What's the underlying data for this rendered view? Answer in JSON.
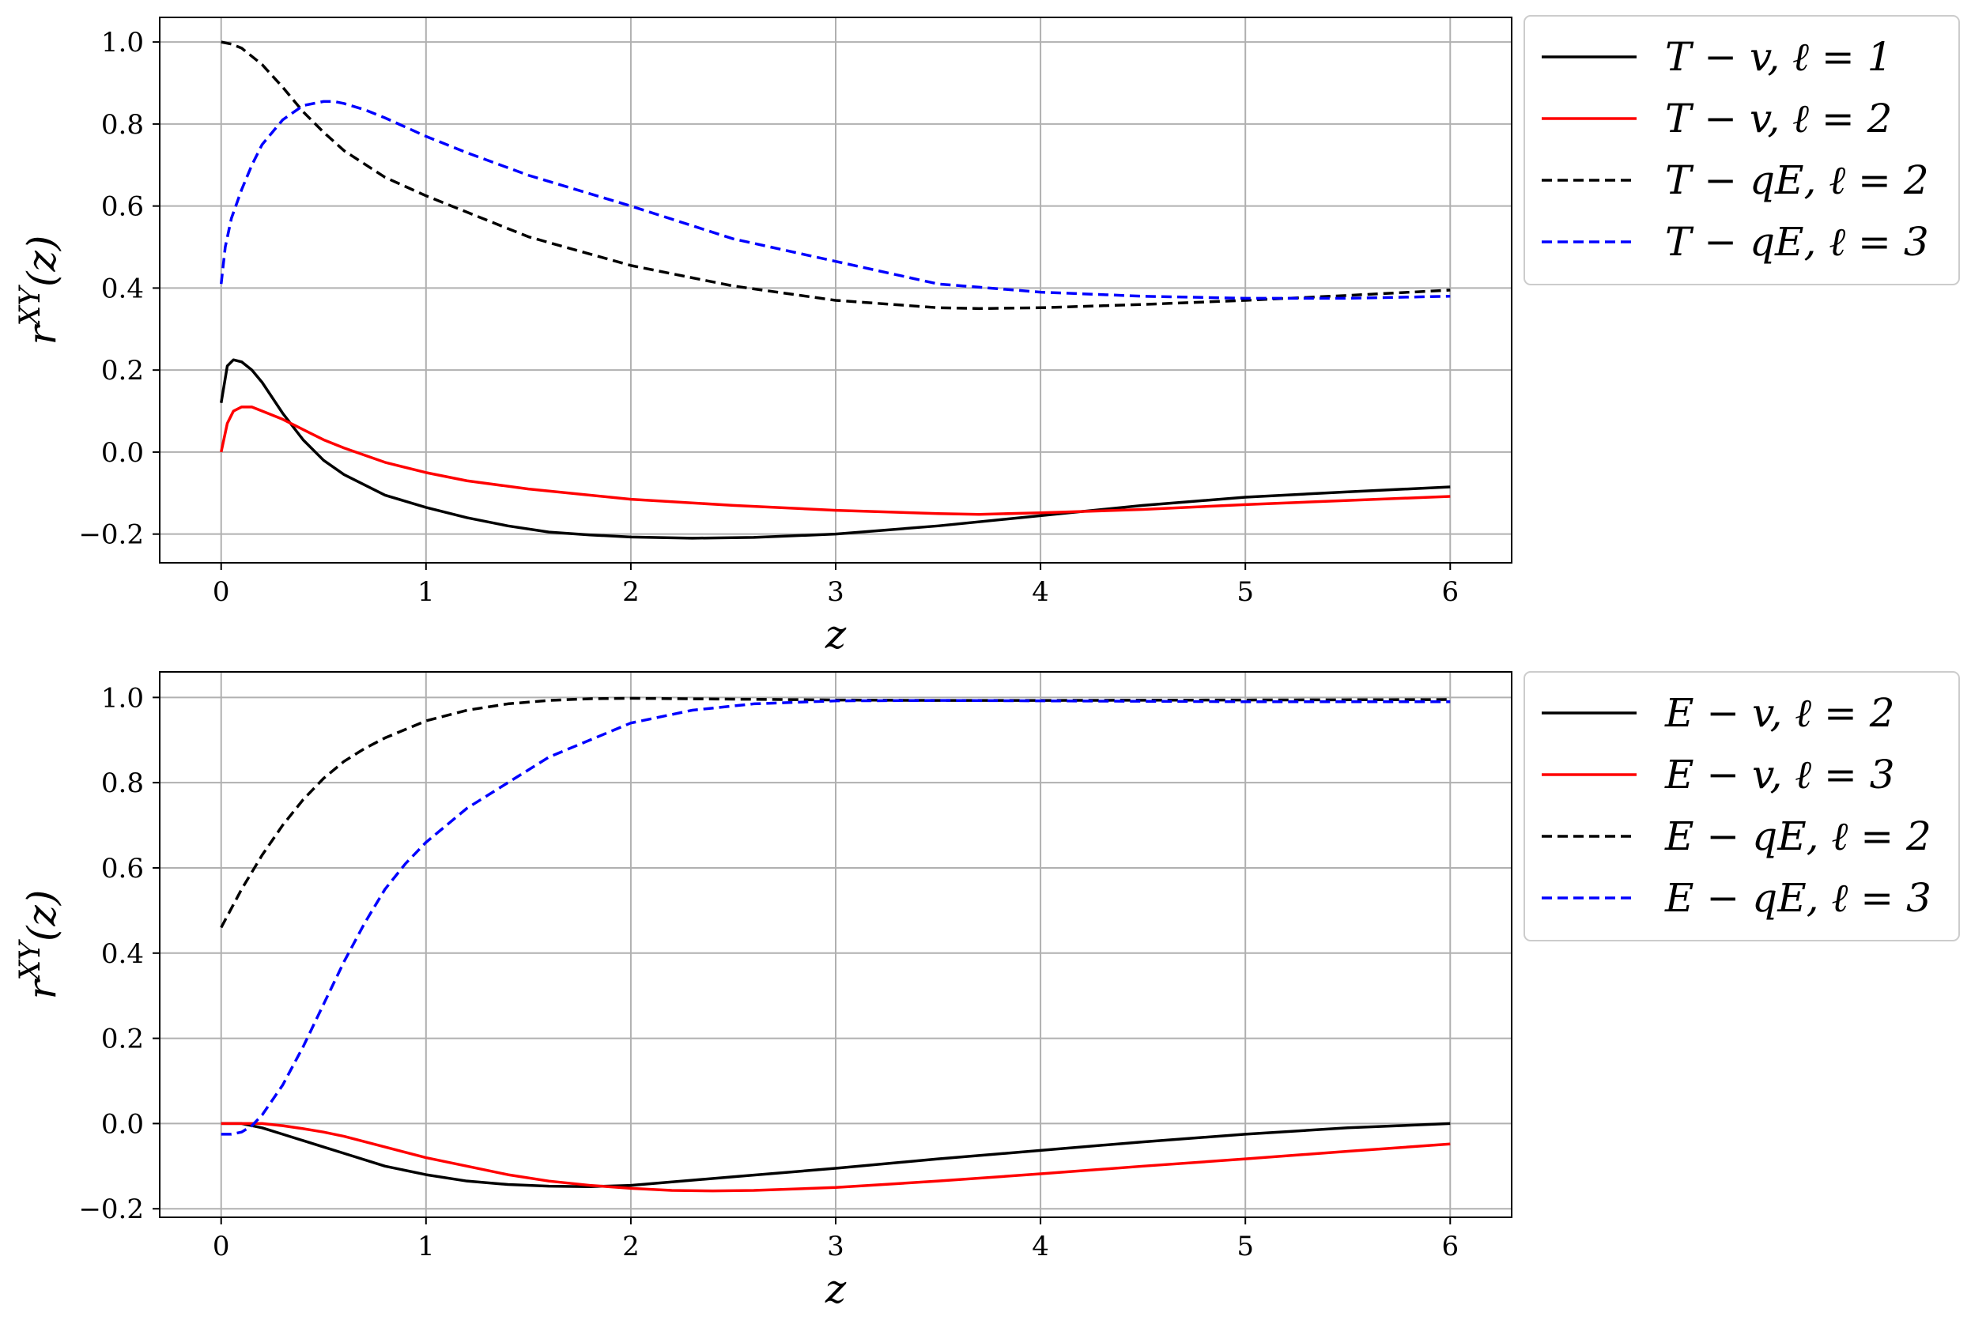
{
  "chart_data": [
    {
      "type": "line",
      "xlabel": "z",
      "ylabel": "r^{XY}(z)",
      "xlim": [
        -0.3,
        6.3
      ],
      "ylim": [
        -0.27,
        1.06
      ],
      "xticks": [
        0,
        1,
        2,
        3,
        4,
        5,
        6
      ],
      "yticks": [
        -0.2,
        0.0,
        0.2,
        0.4,
        0.6,
        0.8,
        1.0
      ],
      "xtick_labels": [
        "0",
        "1",
        "2",
        "3",
        "4",
        "5",
        "6"
      ],
      "ytick_labels": [
        "−0.2",
        "0.0",
        "0.2",
        "0.4",
        "0.6",
        "0.8",
        "1.0"
      ],
      "grid": true,
      "legend": "outside-top-right",
      "series": [
        {
          "name": "T − v,  ℓ = 1",
          "color": "#000000",
          "dash": "solid",
          "x": [
            0,
            0.03,
            0.06,
            0.1,
            0.15,
            0.2,
            0.3,
            0.4,
            0.5,
            0.6,
            0.8,
            1.0,
            1.2,
            1.4,
            1.6,
            1.8,
            2.0,
            2.3,
            2.6,
            3.0,
            3.5,
            4.0,
            4.5,
            5.0,
            5.5,
            6.0
          ],
          "y": [
            0.12,
            0.21,
            0.225,
            0.22,
            0.2,
            0.17,
            0.095,
            0.03,
            -0.02,
            -0.055,
            -0.105,
            -0.135,
            -0.16,
            -0.18,
            -0.195,
            -0.202,
            -0.207,
            -0.21,
            -0.208,
            -0.2,
            -0.18,
            -0.155,
            -0.13,
            -0.11,
            -0.097,
            -0.085
          ]
        },
        {
          "name": "T − v,  ℓ = 2",
          "color": "#ff0000",
          "dash": "solid",
          "x": [
            0,
            0.03,
            0.06,
            0.1,
            0.15,
            0.2,
            0.3,
            0.4,
            0.5,
            0.6,
            0.8,
            1.0,
            1.2,
            1.5,
            2.0,
            2.5,
            3.0,
            3.5,
            3.7,
            4.0,
            4.5,
            5.0,
            5.5,
            6.0
          ],
          "y": [
            0.0,
            0.07,
            0.1,
            0.11,
            0.11,
            0.1,
            0.08,
            0.055,
            0.03,
            0.01,
            -0.025,
            -0.05,
            -0.07,
            -0.09,
            -0.115,
            -0.13,
            -0.142,
            -0.15,
            -0.152,
            -0.148,
            -0.14,
            -0.128,
            -0.118,
            -0.108
          ]
        },
        {
          "name": "T − qE,  ℓ = 2",
          "color": "#000000",
          "dash": "dashed",
          "x": [
            0,
            0.05,
            0.1,
            0.2,
            0.3,
            0.4,
            0.5,
            0.6,
            0.8,
            1.0,
            1.2,
            1.5,
            2.0,
            2.5,
            3.0,
            3.5,
            3.7,
            4.0,
            4.5,
            5.0,
            5.5,
            6.0
          ],
          "y": [
            1.0,
            0.995,
            0.985,
            0.945,
            0.89,
            0.83,
            0.78,
            0.735,
            0.67,
            0.625,
            0.585,
            0.525,
            0.455,
            0.405,
            0.37,
            0.352,
            0.35,
            0.352,
            0.36,
            0.37,
            0.382,
            0.395
          ]
        },
        {
          "name": "T − qE,  ℓ = 3",
          "color": "#0000ff",
          "dash": "dashed",
          "x": [
            0,
            0.02,
            0.05,
            0.1,
            0.15,
            0.2,
            0.3,
            0.4,
            0.5,
            0.55,
            0.6,
            0.7,
            0.8,
            1.0,
            1.2,
            1.5,
            2.0,
            2.5,
            3.0,
            3.5,
            4.0,
            4.5,
            5.0,
            5.5,
            6.0
          ],
          "y": [
            0.41,
            0.5,
            0.57,
            0.64,
            0.7,
            0.75,
            0.81,
            0.845,
            0.855,
            0.855,
            0.85,
            0.835,
            0.815,
            0.77,
            0.73,
            0.675,
            0.6,
            0.52,
            0.465,
            0.41,
            0.39,
            0.38,
            0.375,
            0.375,
            0.38
          ]
        }
      ]
    },
    {
      "type": "line",
      "xlabel": "z",
      "ylabel": "r^{XY}(z)",
      "xlim": [
        -0.3,
        6.3
      ],
      "ylim": [
        -0.22,
        1.06
      ],
      "xticks": [
        0,
        1,
        2,
        3,
        4,
        5,
        6
      ],
      "yticks": [
        -0.2,
        0.0,
        0.2,
        0.4,
        0.6,
        0.8,
        1.0
      ],
      "xtick_labels": [
        "0",
        "1",
        "2",
        "3",
        "4",
        "5",
        "6"
      ],
      "ytick_labels": [
        "−0.2",
        "0.0",
        "0.2",
        "0.4",
        "0.6",
        "0.8",
        "1.0"
      ],
      "grid": true,
      "legend": "outside-top-right",
      "series": [
        {
          "name": "E − v,  ℓ = 2",
          "color": "#000000",
          "dash": "solid",
          "x": [
            0,
            0.1,
            0.2,
            0.3,
            0.4,
            0.5,
            0.6,
            0.8,
            1.0,
            1.2,
            1.4,
            1.6,
            1.8,
            2.0,
            2.5,
            3.0,
            3.5,
            4.0,
            4.5,
            5.0,
            5.5,
            6.0
          ],
          "y": [
            0.0,
            0.0,
            -0.01,
            -0.025,
            -0.04,
            -0.055,
            -0.07,
            -0.1,
            -0.12,
            -0.135,
            -0.143,
            -0.147,
            -0.148,
            -0.145,
            -0.125,
            -0.105,
            -0.083,
            -0.063,
            -0.043,
            -0.025,
            -0.01,
            0.0
          ]
        },
        {
          "name": "E − v,  ℓ = 3",
          "color": "#ff0000",
          "dash": "solid",
          "x": [
            0,
            0.1,
            0.2,
            0.3,
            0.4,
            0.5,
            0.6,
            0.8,
            1.0,
            1.2,
            1.4,
            1.6,
            1.8,
            2.0,
            2.2,
            2.4,
            2.6,
            3.0,
            3.5,
            4.0,
            4.5,
            5.0,
            5.5,
            6.0
          ],
          "y": [
            0.0,
            0.0,
            0.0,
            -0.005,
            -0.012,
            -0.02,
            -0.03,
            -0.055,
            -0.08,
            -0.1,
            -0.12,
            -0.135,
            -0.145,
            -0.152,
            -0.157,
            -0.158,
            -0.157,
            -0.15,
            -0.135,
            -0.118,
            -0.1,
            -0.083,
            -0.065,
            -0.048
          ]
        },
        {
          "name": "E − qE,  ℓ = 2",
          "color": "#000000",
          "dash": "dashed",
          "x": [
            0,
            0.1,
            0.2,
            0.3,
            0.4,
            0.5,
            0.6,
            0.7,
            0.8,
            1.0,
            1.2,
            1.4,
            1.6,
            1.8,
            2.0,
            2.5,
            3.0,
            3.5,
            4.0,
            5.0,
            6.0
          ],
          "y": [
            0.46,
            0.55,
            0.63,
            0.7,
            0.76,
            0.81,
            0.85,
            0.88,
            0.905,
            0.945,
            0.97,
            0.985,
            0.993,
            0.997,
            0.998,
            0.996,
            0.994,
            0.993,
            0.993,
            0.994,
            0.995
          ]
        },
        {
          "name": "E − qE,  ℓ = 3",
          "color": "#0000ff",
          "dash": "dashed",
          "x": [
            0,
            0.05,
            0.1,
            0.15,
            0.2,
            0.3,
            0.4,
            0.5,
            0.6,
            0.7,
            0.8,
            0.9,
            1.0,
            1.2,
            1.4,
            1.6,
            1.8,
            2.0,
            2.3,
            2.6,
            3.0,
            3.5,
            4.0,
            5.0,
            6.0
          ],
          "y": [
            -0.025,
            -0.025,
            -0.02,
            -0.005,
            0.02,
            0.09,
            0.18,
            0.28,
            0.38,
            0.47,
            0.55,
            0.61,
            0.66,
            0.74,
            0.8,
            0.86,
            0.9,
            0.94,
            0.97,
            0.985,
            0.992,
            0.993,
            0.992,
            0.99,
            0.99
          ]
        }
      ]
    }
  ]
}
